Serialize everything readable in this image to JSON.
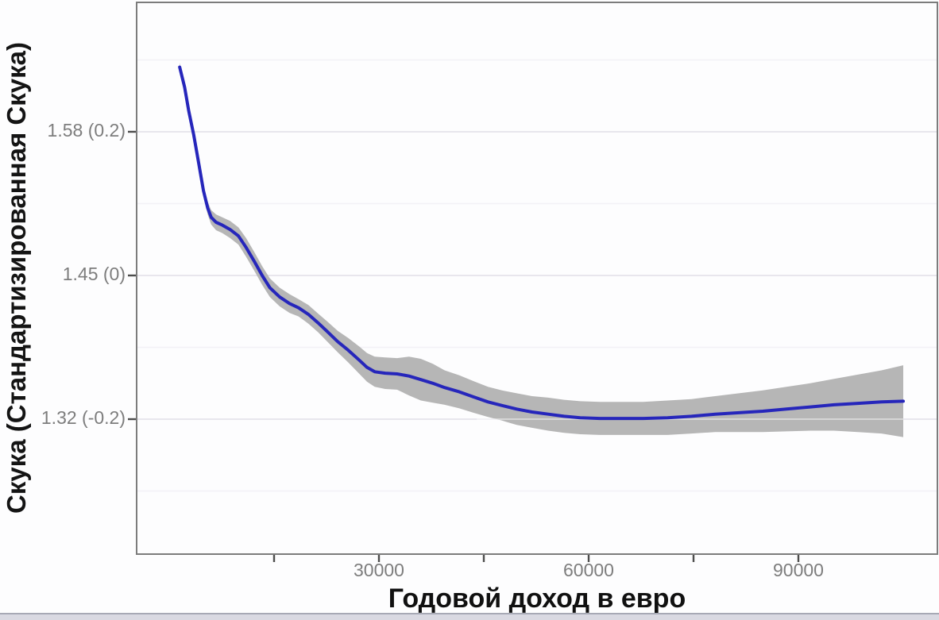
{
  "chart_data": {
    "type": "line",
    "title": "",
    "xlabel": "Годовой доход в евро",
    "ylabel": "Скука (Стандартизированная Скука)",
    "legend": "none",
    "grid": "horizontal-only",
    "xlim": [
      -4200,
      110000
    ],
    "ylim": [
      -0.38,
      0.38
    ],
    "x_ticks": [
      {
        "value": 30000,
        "label": "30000"
      },
      {
        "value": 60000,
        "label": "60000"
      },
      {
        "value": 90000,
        "label": "90000"
      }
    ],
    "x_minor_ticks": [
      15000,
      45000,
      75000
    ],
    "y_ticks": [
      {
        "value": 0.2,
        "label": "1.58 (0.2)"
      },
      {
        "value": 0,
        "label": "1.45 (0)"
      },
      {
        "value": -0.2,
        "label": "1.32 (-0.2)"
      }
    ],
    "y_gridlines_major": [
      0.2,
      0,
      -0.2
    ],
    "y_gridlines_minor": [
      0.3,
      0.1,
      -0.1,
      -0.3
    ],
    "series": [
      {
        "name": "gam-smooth-with-ci",
        "income": [
          1500,
          2200,
          2800,
          3500,
          4200,
          4900,
          5500,
          6000,
          6700,
          7600,
          8700,
          9900,
          11000,
          12200,
          13300,
          14400,
          15800,
          17200,
          18500,
          19900,
          21300,
          22600,
          24100,
          25600,
          27200,
          28300,
          29400,
          30900,
          32600,
          34300,
          36000,
          37700,
          39400,
          41500,
          43500,
          45600,
          47600,
          49700,
          51900,
          54200,
          56500,
          58800,
          61600,
          64400,
          67800,
          71300,
          74700,
          78100,
          81500,
          84900,
          88300,
          91700,
          95100,
          98500,
          101900,
          105000
        ],
        "value": [
          0.29,
          0.262,
          0.229,
          0.196,
          0.157,
          0.118,
          0.094,
          0.081,
          0.074,
          0.07,
          0.064,
          0.055,
          0.039,
          0.019,
          0.0,
          -0.017,
          -0.03,
          -0.039,
          -0.045,
          -0.054,
          -0.066,
          -0.078,
          -0.092,
          -0.104,
          -0.118,
          -0.128,
          -0.134,
          -0.136,
          -0.137,
          -0.14,
          -0.145,
          -0.15,
          -0.156,
          -0.162,
          -0.169,
          -0.176,
          -0.181,
          -0.186,
          -0.19,
          -0.193,
          -0.196,
          -0.198,
          -0.199,
          -0.199,
          -0.199,
          -0.198,
          -0.196,
          -0.193,
          -0.191,
          -0.189,
          -0.186,
          -0.183,
          -0.18,
          -0.178,
          -0.176,
          -0.175
        ],
        "ci": [
          0.006,
          0.005,
          0.005,
          0.006,
          0.007,
          0.008,
          0.009,
          0.01,
          0.011,
          0.011,
          0.012,
          0.012,
          0.013,
          0.013,
          0.013,
          0.013,
          0.013,
          0.013,
          0.012,
          0.013,
          0.013,
          0.014,
          0.015,
          0.017,
          0.019,
          0.02,
          0.021,
          0.022,
          0.022,
          0.027,
          0.029,
          0.027,
          0.024,
          0.023,
          0.022,
          0.021,
          0.021,
          0.022,
          0.022,
          0.023,
          0.023,
          0.023,
          0.023,
          0.023,
          0.023,
          0.024,
          0.024,
          0.025,
          0.027,
          0.029,
          0.031,
          0.033,
          0.036,
          0.04,
          0.044,
          0.05
        ]
      }
    ],
    "colors": {
      "line": "#2626bb",
      "ribbon": "#b2b2b2",
      "grid_major": "#e8e6ed",
      "grid_minor": "#f3f1f6",
      "panel_border": "#7c7c7c",
      "tick_mark": "#4d4d4d",
      "tick_label": "#7d7d7d",
      "axis_title": "#101010",
      "bottom_bar": "#d9d9e2"
    }
  }
}
